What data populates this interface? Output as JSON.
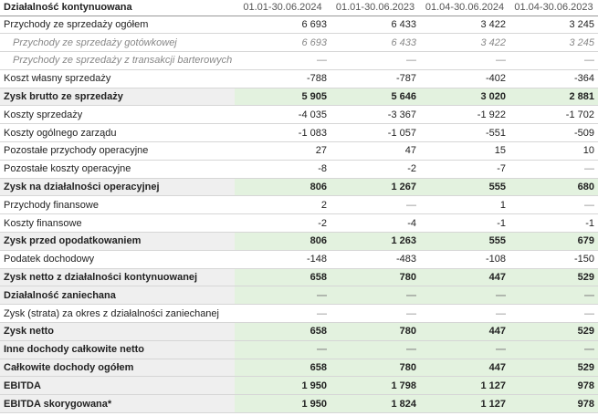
{
  "table": {
    "header": [
      "Działalność kontynuowana",
      "01.01-30.06.2024",
      "01.01-30.06.2023",
      "01.04-30.06.2024",
      "01.04-30.06.2023"
    ],
    "rows": [
      [
        "Przychody ze sprzedaży ogółem",
        "6 693",
        "6 433",
        "3 422",
        "3 245"
      ],
      [
        "Przychody ze sprzedaży gotówkowej",
        "6 693",
        "6 433",
        "3 422",
        "3 245"
      ],
      [
        "Przychody ze sprzedaży z transakcji barterowych",
        "—",
        "—",
        "—",
        "—"
      ],
      [
        "Koszt własny sprzedaży",
        "-788",
        "-787",
        "-402",
        "-364"
      ],
      [
        "Zysk brutto ze sprzedaży",
        "5 905",
        "5 646",
        "3 020",
        "2 881"
      ],
      [
        "Koszty sprzedaży",
        "-4 035",
        "-3 367",
        "-1 922",
        "-1 702"
      ],
      [
        "Koszty ogólnego zarządu",
        "-1 083",
        "-1 057",
        "-551",
        "-509"
      ],
      [
        "Pozostałe przychody operacyjne",
        "27",
        "47",
        "15",
        "10"
      ],
      [
        "Pozostałe koszty operacyjne",
        "-8",
        "-2",
        "-7",
        "—"
      ],
      [
        "Zysk na działalności operacyjnej",
        "806",
        "1 267",
        "555",
        "680"
      ],
      [
        "Przychody finansowe",
        "2",
        "—",
        "1",
        "—"
      ],
      [
        "Koszty finansowe",
        "-2",
        "-4",
        "-1",
        "-1"
      ],
      [
        "Zysk przed opodatkowaniem",
        "806",
        "1 263",
        "555",
        "679"
      ],
      [
        "Podatek dochodowy",
        "-148",
        "-483",
        "-108",
        "-150"
      ],
      [
        "Zysk netto z działalności kontynuowanej",
        "658",
        "780",
        "447",
        "529"
      ],
      [
        "Działalność zaniechana",
        "—",
        "—",
        "—",
        "—"
      ],
      [
        "Zysk (strata) za okres z działalności zaniechanej",
        "—",
        "—",
        "—",
        "—"
      ],
      [
        "Zysk netto",
        "658",
        "780",
        "447",
        "529"
      ],
      [
        "Inne dochody całkowite netto",
        "—",
        "—",
        "—",
        "—"
      ],
      [
        "Całkowite dochody ogółem",
        "658",
        "780",
        "447",
        "529"
      ],
      [
        "EBITDA",
        "1 950",
        "1 798",
        "1 127",
        "978"
      ],
      [
        "EBITDA skorygowana*",
        "1 950",
        "1 824",
        "1 127",
        "978"
      ]
    ]
  }
}
